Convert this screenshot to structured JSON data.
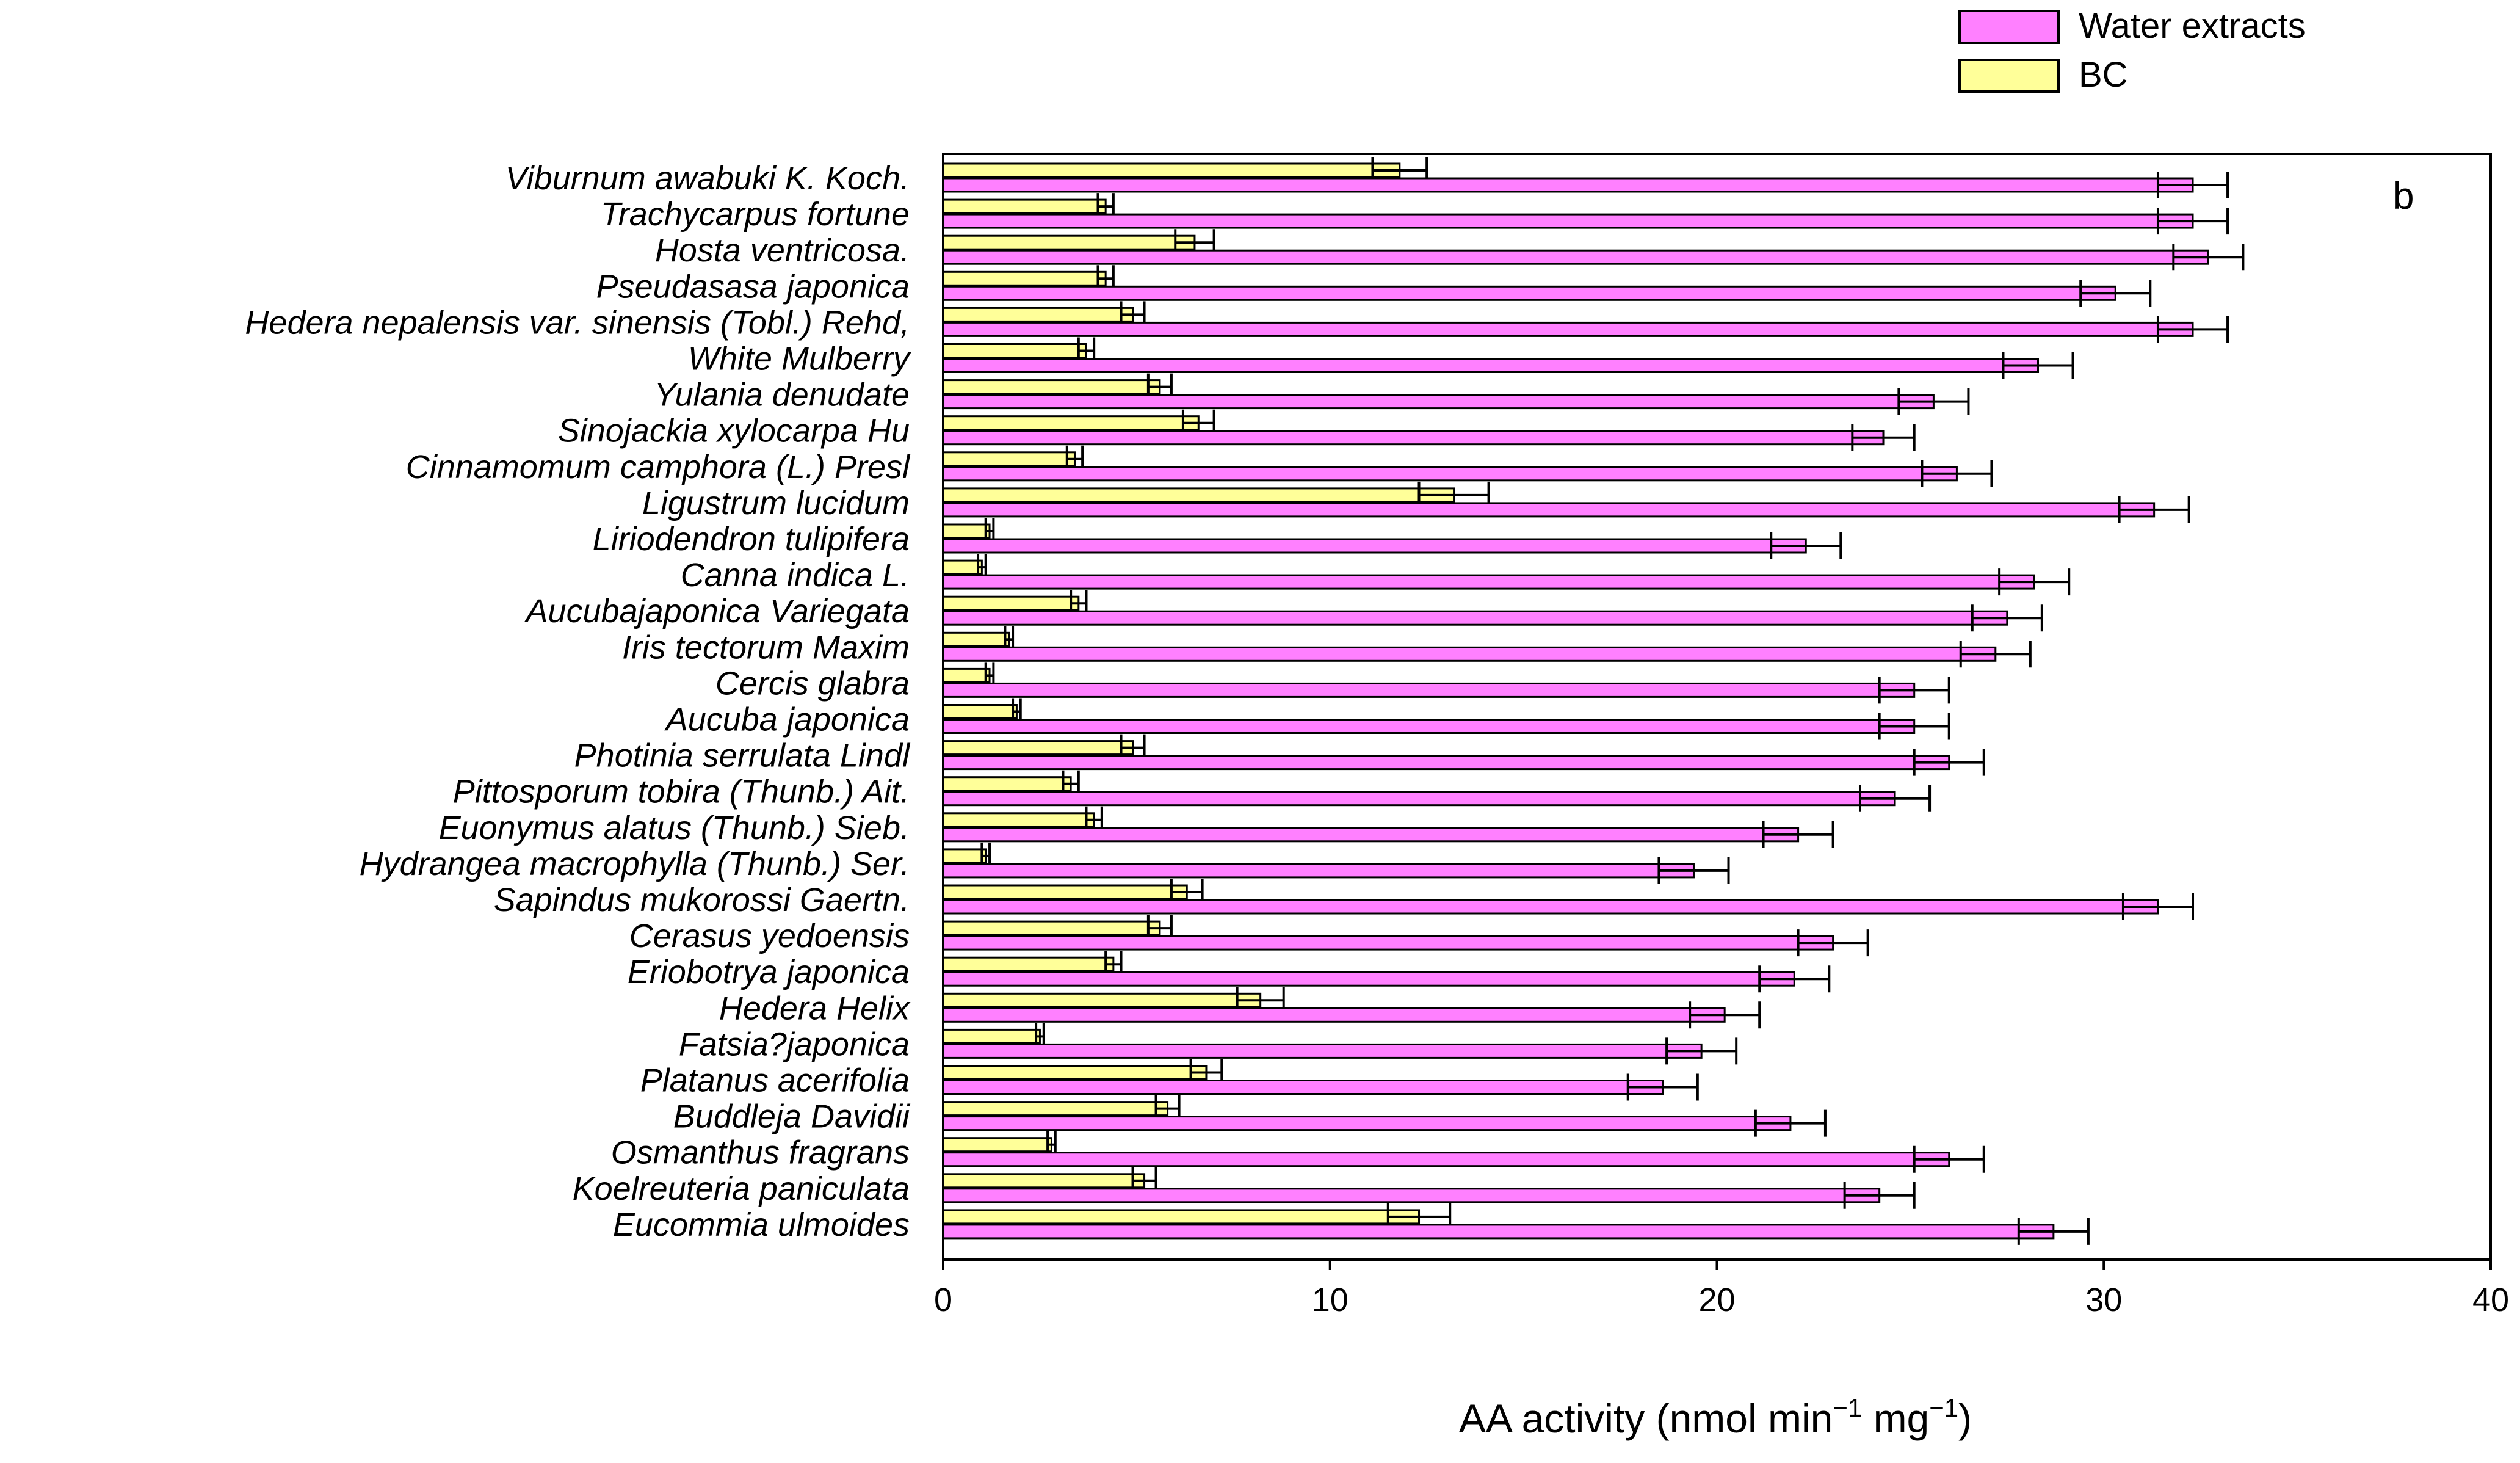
{
  "chart_data": {
    "type": "bar",
    "orientation": "horizontal",
    "panel_label": "b",
    "xlabel": "AA activity (nmol min",
    "xlabel_sup1": "−1",
    "xlabel_mid": " mg",
    "xlabel_sup2": "−1",
    "xlabel_end": ")",
    "xlim": [
      0,
      40
    ],
    "xticks": [
      "0",
      "10",
      "20",
      "30",
      "40"
    ],
    "legend_position": "top-right",
    "categories": [
      "Viburnum awabuki K. Koch.",
      "Trachycarpus fortune",
      "Hosta ventricosa.",
      "Pseudasasa japonica",
      "Hedera nepalensis var. sinensis (Tobl.) Rehd,",
      "White Mulberry",
      "Yulania denudate",
      "Sinojackia xylocarpa Hu",
      "Cinnamomum camphora (L.) Presl",
      "Ligustrum lucidum",
      "Liriodendron tulipifera",
      "Canna indica L.",
      "Aucubajaponica Variegata",
      "Iris tectorum Maxim",
      "Cercis glabra",
      "Aucuba japonica",
      "Photinia serrulata Lindl",
      "Pittosporum tobira (Thunb.) Ait.",
      "Euonymus alatus (Thunb.) Sieb.",
      "Hydrangea macrophylla (Thunb.) Ser.",
      "Sapindus mukorossi Gaertn.",
      "Cerasus yedoensis",
      "Eriobotrya japonica",
      "Hedera Helix",
      "Fatsia?japonica",
      "Platanus acerifolia",
      "Buddleja Davidii",
      "Osmanthus fragrans",
      "Koelreuteria paniculata",
      "Eucommia ulmoides"
    ],
    "series": [
      {
        "name": "Water extracts",
        "color": "#FF80FF",
        "values": [
          32.3,
          32.3,
          32.7,
          30.3,
          32.3,
          28.3,
          25.6,
          24.3,
          26.2,
          31.3,
          22.3,
          28.2,
          27.5,
          27.2,
          25.1,
          25.1,
          26.0,
          24.6,
          22.1,
          19.4,
          31.4,
          23.0,
          22.0,
          20.2,
          19.6,
          18.6,
          21.9,
          26.0,
          24.2,
          28.7
        ],
        "errors": [
          0.9,
          0.9,
          0.9,
          0.9,
          0.9,
          0.9,
          0.9,
          0.8,
          0.9,
          0.9,
          0.9,
          0.9,
          0.9,
          0.9,
          0.9,
          0.9,
          0.9,
          0.9,
          0.9,
          0.9,
          0.9,
          0.9,
          0.9,
          0.9,
          0.9,
          0.9,
          0.9,
          0.9,
          0.9,
          0.9
        ]
      },
      {
        "name": "BC",
        "color": "#FFFF99",
        "values": [
          11.8,
          4.2,
          6.5,
          4.2,
          4.9,
          3.7,
          5.6,
          6.6,
          3.4,
          13.2,
          1.2,
          1.0,
          3.5,
          1.7,
          1.2,
          1.9,
          4.9,
          3.3,
          3.9,
          1.1,
          6.3,
          5.6,
          4.4,
          8.2,
          2.5,
          6.8,
          5.8,
          2.8,
          5.2,
          12.3
        ],
        "errors": [
          0.7,
          0.2,
          0.5,
          0.2,
          0.3,
          0.2,
          0.3,
          0.4,
          0.2,
          0.9,
          0.1,
          0.1,
          0.2,
          0.1,
          0.1,
          0.1,
          0.3,
          0.2,
          0.2,
          0.1,
          0.4,
          0.3,
          0.2,
          0.6,
          0.1,
          0.4,
          0.3,
          0.1,
          0.3,
          0.8
        ]
      }
    ]
  }
}
